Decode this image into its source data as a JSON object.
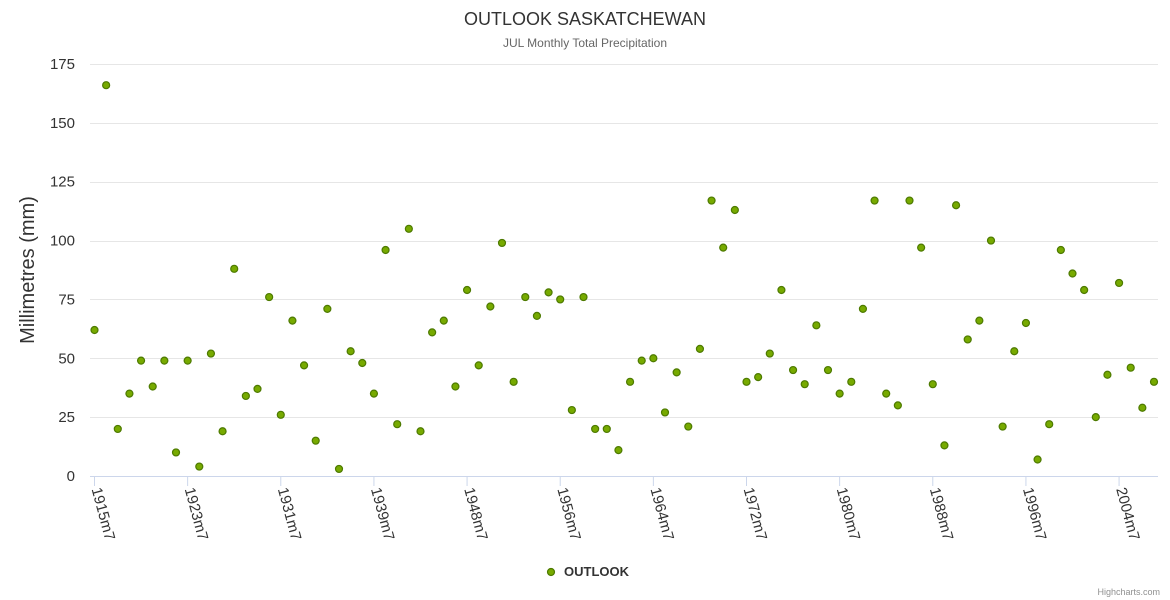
{
  "chart_data": {
    "type": "scatter",
    "title": "OUTLOOK SASKATCHEWAN",
    "subtitle": "JUL Monthly Total Precipitation",
    "ylabel": "Millimetres (mm)",
    "xlabel": "",
    "ylim": [
      0,
      175
    ],
    "yticks": [
      0,
      25,
      50,
      75,
      100,
      125,
      150,
      175
    ],
    "x_tick_labels": [
      "1915m7",
      "1923m7",
      "1931m7",
      "1939m7",
      "1948m7",
      "1956m7",
      "1964m7",
      "1972m7",
      "1980m7",
      "1988m7",
      "1996m7",
      "2004m7"
    ],
    "x_tick_index": [
      0,
      8,
      16,
      24,
      32,
      40,
      48,
      56,
      64,
      72,
      80,
      88
    ],
    "legend_position": "bottom-center",
    "series": [
      {
        "name": "OUTLOOK",
        "color": "#77aa00",
        "values": [
          62,
          166,
          20,
          35,
          49,
          38,
          49,
          10,
          49,
          4,
          52,
          19,
          88,
          34,
          37,
          76,
          26,
          66,
          47,
          15,
          71,
          3,
          53,
          48,
          35,
          96,
          22,
          105,
          19,
          61,
          66,
          38,
          79,
          47,
          72,
          99,
          40,
          76,
          68,
          78,
          75,
          28,
          76,
          20,
          20,
          11,
          40,
          49,
          50,
          27,
          44,
          21,
          54,
          117,
          97,
          113,
          40,
          42,
          52,
          79,
          45,
          39,
          64,
          45,
          35,
          40,
          71,
          117,
          35,
          30,
          117,
          97,
          39,
          13,
          115,
          58,
          66,
          100,
          21,
          53,
          65,
          7,
          22,
          96,
          86,
          79,
          25,
          43,
          82,
          46,
          29,
          40
        ]
      }
    ]
  },
  "legend": {
    "label": "OUTLOOK"
  },
  "credits": "Highcharts.com"
}
